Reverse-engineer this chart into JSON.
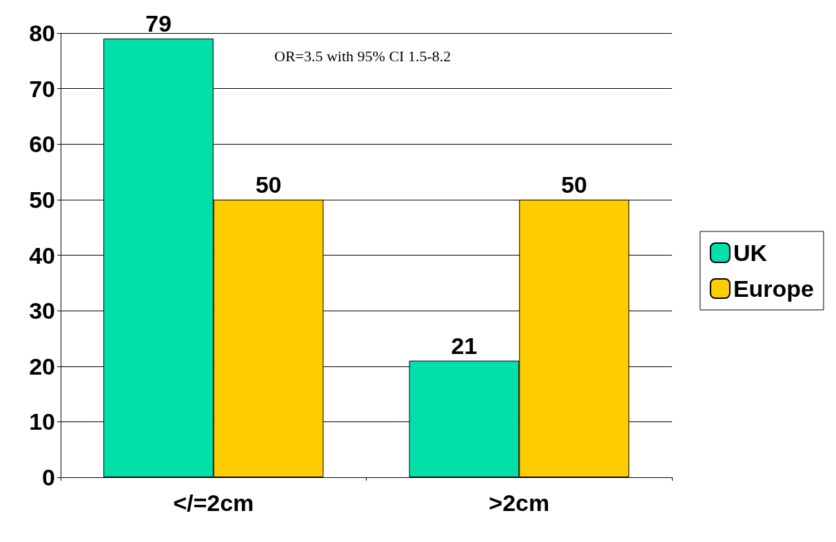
{
  "chart_data": {
    "type": "bar",
    "categories": [
      "</=2cm",
      ">2cm"
    ],
    "series": [
      {
        "name": "UK",
        "color": "#00e0a8",
        "values": [
          79,
          21
        ]
      },
      {
        "name": "Europe",
        "color": "#ffcc00",
        "values": [
          50,
          50
        ]
      }
    ],
    "ylim": [
      0,
      80
    ],
    "yticks": [
      0,
      10,
      20,
      30,
      40,
      50,
      60,
      70,
      80
    ],
    "grid": "y",
    "legend": "right",
    "data_labels": true,
    "annotations": [
      "OR=3.5 with 95% CI 1.5-8.2"
    ]
  }
}
